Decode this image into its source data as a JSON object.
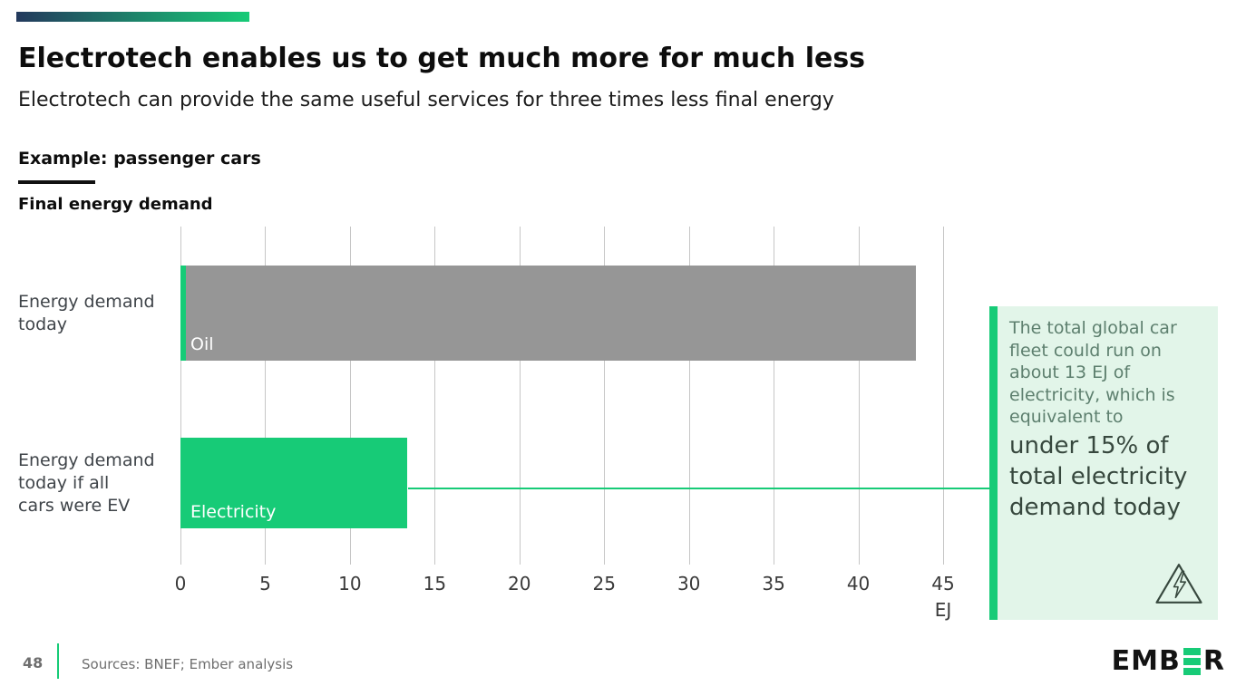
{
  "header": {
    "title": "Electrotech enables us to get much more for much less",
    "subtitle": "Electrotech can provide the same useful services for three times less final energy",
    "example_label": "Example: passenger cars"
  },
  "chart_data": {
    "type": "bar",
    "orientation": "horizontal",
    "title": "Final energy demand",
    "unit": "EJ",
    "x_ticks": [
      0,
      5,
      10,
      15,
      20,
      25,
      30,
      35,
      40,
      45
    ],
    "x_unit_label": "EJ",
    "xlim": [
      0,
      47.3
    ],
    "grid": "vertical",
    "legend": "none",
    "rows": [
      {
        "category": "Energy demand\ntoday",
        "bar_label": "Oil",
        "total_ej": 43.4,
        "segments": [
          {
            "name": "Electricity",
            "value_ej": 0.3,
            "color": "#17cb77"
          },
          {
            "name": "Oil",
            "value_ej": 43.1,
            "color": "#969696"
          }
        ]
      },
      {
        "category": "Energy demand\ntoday if all\ncars were EV",
        "bar_label": "Electricity",
        "total_ej": 13.4,
        "segments": [
          {
            "name": "Electricity",
            "value_ej": 13.4,
            "color": "#17cb77"
          }
        ]
      }
    ]
  },
  "callout": {
    "small_text": "The total global car\nfleet could run on\nabout 13 EJ of\nelectricity, which is\nequivalent to",
    "big_text": "under 15% of\ntotal electricity\ndemand today",
    "icon": "high-voltage-triangle-icon"
  },
  "footer": {
    "page_number": "48",
    "sources": "Sources: BNEF; Ember analysis",
    "logo_prefix": "EMB",
    "logo_suffix": "R",
    "logo_name": "EMBER"
  },
  "colors": {
    "brand_green": "#17cb77",
    "bar_gray": "#969696",
    "gradient_start": "#23395d",
    "gradient_end": "#17cb77",
    "callout_bg": "#e2f5e9",
    "callout_text": "#5d7f6e",
    "callout_text_strong": "#37483e"
  }
}
